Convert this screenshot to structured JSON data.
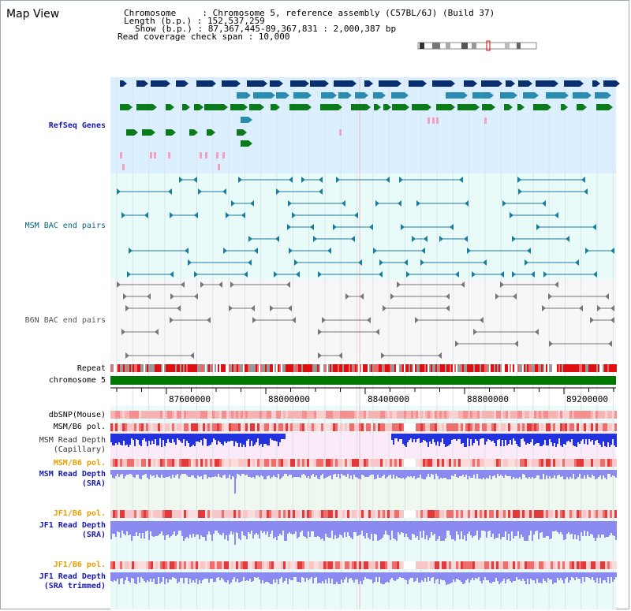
{
  "page": {
    "title": "Map View"
  },
  "info": {
    "chromosome_line": "Chromosome     : Chromosome 5, reference assembly (C57BL/6J) (Build 37)",
    "length_line": "Length (b.p.) : 152,537,259",
    "show_line": "Show (b.p.) : 87,367,445-89,367,831 : 2,000,387 bp",
    "span_line": "Read coverage check span : 10,000"
  },
  "tracks": {
    "refseq": "RefSeq Genes",
    "msm_bac": "MSM BAC end pairs",
    "b6n_bac": "B6N BAC end pairs",
    "repeat": "Repeat",
    "chromosome": "chromosome 5",
    "dbsnp": "dbSNP(Mouse)",
    "msm_b6_pol_1": "MSM/B6 pol.",
    "msm_read_depth_cap_1": "MSM Read Depth",
    "msm_read_depth_cap_2": "(Capillary)",
    "msm_b6_pol_2": "MSM/B6 pol.",
    "msm_read_depth_sra_1": "MSM Read Depth",
    "msm_read_depth_sra_2": "(SRA)",
    "jf1_b6_pol_1": "JF1/B6 pol.",
    "jf1_read_depth_1": "JF1 Read Depth",
    "jf1_read_depth_2": "(SRA)",
    "jf1_b6_pol_2": "JF1/B6 pol.",
    "jf1_read_depth_trim_1": "JF1 Read Depth",
    "jf1_read_depth_trim_2": "(SRA trimmed)"
  },
  "axis": {
    "ticks": [
      "87600000",
      "88000000",
      "88400000",
      "88800000",
      "89200000"
    ]
  },
  "colors": {
    "refseq_bg": "#dcefff",
    "bac_bg": "#e8fbf8",
    "b6n_bg": "#f7f7f7",
    "refseq_label": "#1a1aaa",
    "msm_label": "#006680",
    "b6n_label": "#555555",
    "orange_label": "#e6a000",
    "blue_label": "#1a1aaa",
    "chromosome": "#007700"
  }
}
